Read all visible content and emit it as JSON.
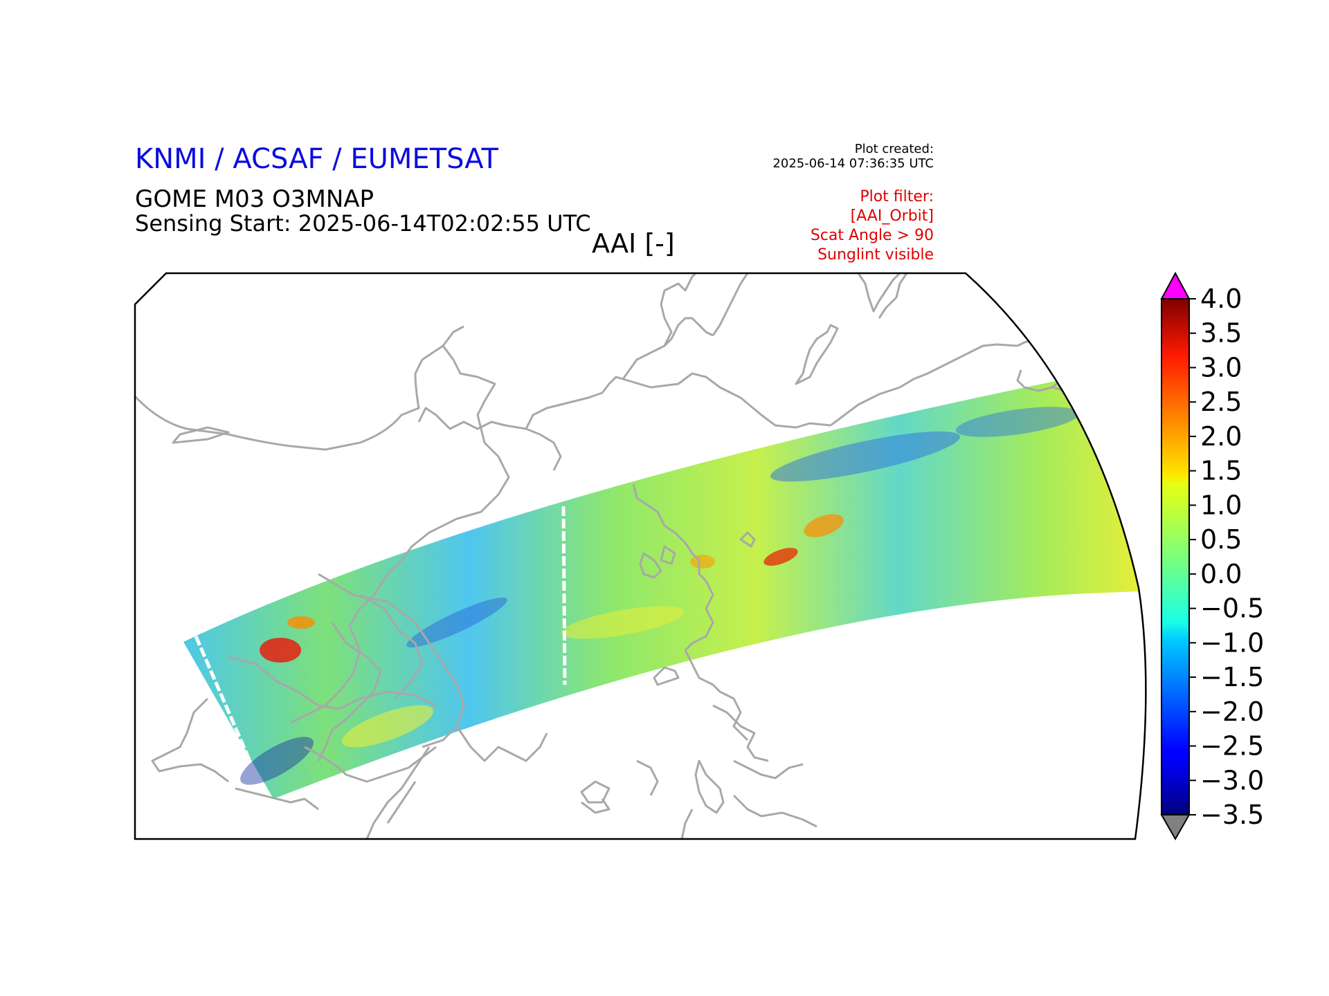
{
  "header": {
    "organization": "KNMI / ACSAF / EUMETSAT",
    "product": "GOME M03 O3MNAP",
    "sensing_start": "Sensing Start: 2025-06-14T02:02:55 UTC",
    "map_title": "AAI [-]"
  },
  "plot_created": {
    "label": "Plot created:",
    "timestamp": "2025-06-14 07:36:35 UTC"
  },
  "plot_filter": {
    "lines": [
      "Plot filter:",
      "[AAI_Orbit]",
      "Scat Angle > 90",
      "Sunglint visible"
    ]
  },
  "colors": {
    "org_text": "#0b0be0",
    "filter_text": "#e00000",
    "coastline": "#a8a8a8",
    "over_extend": "#ff00ff",
    "under_extend": "#808080"
  },
  "colorbar": {
    "variable": "AAI",
    "range": [
      -3.5,
      4.0
    ],
    "tick_labels": [
      "4.0",
      "3.5",
      "3.0",
      "2.5",
      "2.0",
      "1.5",
      "1.0",
      "0.5",
      "0.0",
      "−0.5",
      "−1.0",
      "−1.5",
      "−2.0",
      "−2.5",
      "−3.0",
      "−3.5"
    ],
    "colormap": "jet",
    "extend": "both"
  }
}
